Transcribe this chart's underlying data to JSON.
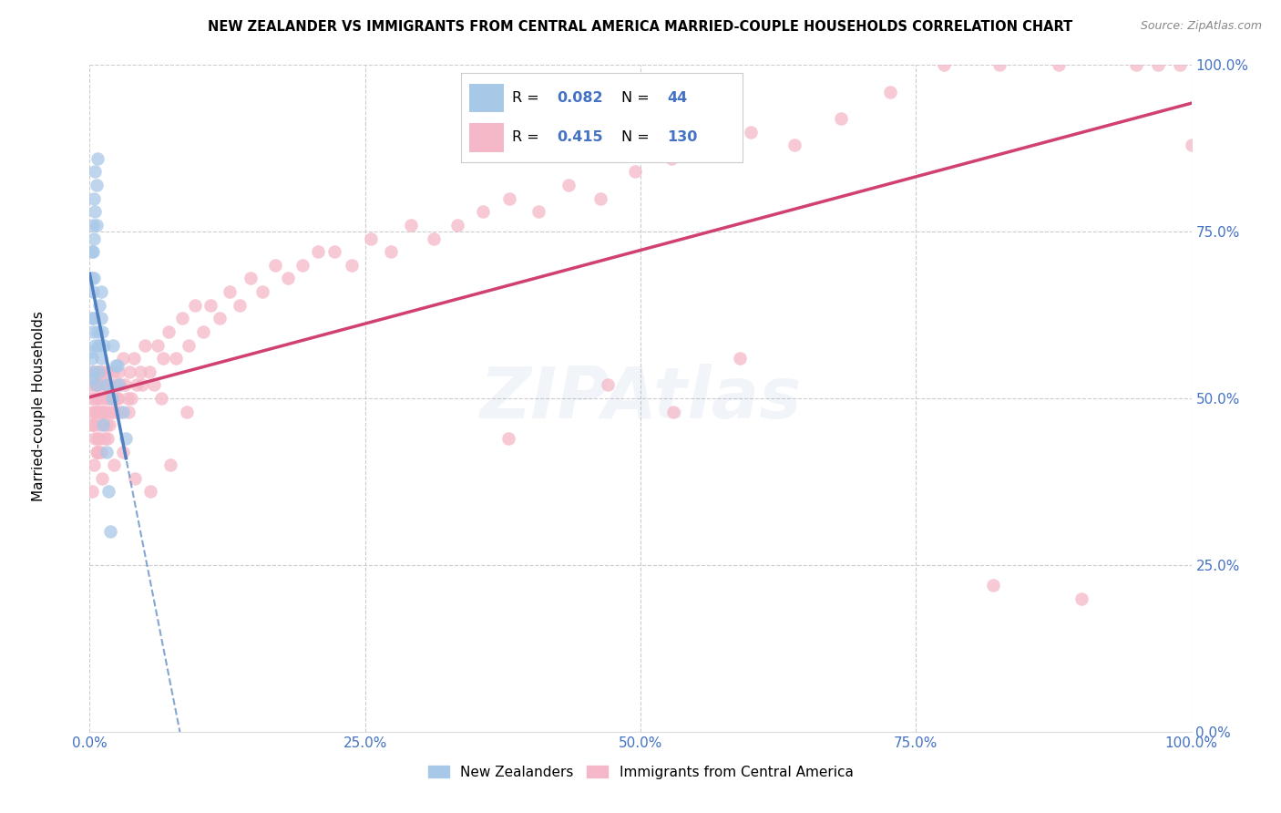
{
  "title": "NEW ZEALANDER VS IMMIGRANTS FROM CENTRAL AMERICA MARRIED-COUPLE HOUSEHOLDS CORRELATION CHART",
  "source": "Source: ZipAtlas.com",
  "ylabel": "Married-couple Households",
  "watermark": "ZIPAtlas",
  "r_nz": 0.082,
  "n_nz": 44,
  "r_ca": 0.415,
  "n_ca": 130,
  "color_nz": "#a8c8e8",
  "color_ca": "#f5b8c8",
  "line_color_nz": "#5080c0",
  "line_color_ca": "#d04070",
  "background": "#ffffff",
  "grid_color": "#cccccc",
  "text_color_blue": "#4472c4",
  "xmin": 0.0,
  "xmax": 1.0,
  "ymin": 0.0,
  "ymax": 1.0,
  "nz_x": [
    0.001,
    0.001,
    0.002,
    0.002,
    0.002,
    0.002,
    0.003,
    0.003,
    0.003,
    0.003,
    0.003,
    0.004,
    0.004,
    0.004,
    0.004,
    0.005,
    0.005,
    0.005,
    0.006,
    0.006,
    0.006,
    0.007,
    0.007,
    0.008,
    0.008,
    0.009,
    0.009,
    0.01,
    0.01,
    0.011,
    0.012,
    0.013,
    0.015,
    0.017,
    0.019,
    0.021,
    0.024,
    0.026,
    0.03,
    0.033,
    0.01,
    0.015,
    0.02,
    0.025
  ],
  "nz_y": [
    0.57,
    0.53,
    0.72,
    0.68,
    0.62,
    0.56,
    0.76,
    0.72,
    0.66,
    0.6,
    0.54,
    0.8,
    0.74,
    0.68,
    0.62,
    0.84,
    0.78,
    0.58,
    0.82,
    0.76,
    0.52,
    0.86,
    0.6,
    0.58,
    0.54,
    0.64,
    0.58,
    0.66,
    0.62,
    0.6,
    0.46,
    0.58,
    0.42,
    0.36,
    0.3,
    0.58,
    0.55,
    0.52,
    0.48,
    0.44,
    0.56,
    0.52,
    0.5,
    0.55
  ],
  "ca_x": [
    0.001,
    0.002,
    0.002,
    0.003,
    0.003,
    0.004,
    0.004,
    0.005,
    0.005,
    0.005,
    0.006,
    0.006,
    0.006,
    0.007,
    0.007,
    0.007,
    0.008,
    0.008,
    0.008,
    0.009,
    0.009,
    0.009,
    0.01,
    0.01,
    0.01,
    0.011,
    0.011,
    0.012,
    0.012,
    0.013,
    0.013,
    0.014,
    0.014,
    0.015,
    0.015,
    0.016,
    0.017,
    0.017,
    0.018,
    0.019,
    0.02,
    0.021,
    0.022,
    0.023,
    0.024,
    0.025,
    0.026,
    0.027,
    0.028,
    0.03,
    0.032,
    0.034,
    0.036,
    0.038,
    0.04,
    0.043,
    0.046,
    0.05,
    0.054,
    0.058,
    0.062,
    0.067,
    0.072,
    0.078,
    0.084,
    0.09,
    0.096,
    0.103,
    0.11,
    0.118,
    0.127,
    0.136,
    0.146,
    0.157,
    0.168,
    0.18,
    0.193,
    0.207,
    0.222,
    0.238,
    0.255,
    0.273,
    0.292,
    0.312,
    0.334,
    0.357,
    0.381,
    0.407,
    0.435,
    0.464,
    0.495,
    0.528,
    0.563,
    0.6,
    0.64,
    0.682,
    0.727,
    0.775,
    0.826,
    0.88,
    0.003,
    0.005,
    0.008,
    0.012,
    0.018,
    0.025,
    0.035,
    0.048,
    0.065,
    0.088,
    0.47,
    0.53,
    0.59,
    0.38,
    0.82,
    0.9,
    0.95,
    0.97,
    0.99,
    1.0,
    0.002,
    0.004,
    0.007,
    0.011,
    0.016,
    0.022,
    0.03,
    0.041,
    0.055,
    0.073
  ],
  "ca_y": [
    0.52,
    0.5,
    0.46,
    0.54,
    0.48,
    0.52,
    0.46,
    0.54,
    0.5,
    0.44,
    0.52,
    0.48,
    0.42,
    0.54,
    0.5,
    0.44,
    0.52,
    0.48,
    0.42,
    0.54,
    0.5,
    0.44,
    0.52,
    0.48,
    0.42,
    0.54,
    0.48,
    0.52,
    0.46,
    0.54,
    0.5,
    0.48,
    0.44,
    0.52,
    0.46,
    0.5,
    0.54,
    0.48,
    0.52,
    0.5,
    0.48,
    0.54,
    0.5,
    0.48,
    0.52,
    0.5,
    0.54,
    0.48,
    0.52,
    0.56,
    0.52,
    0.5,
    0.54,
    0.5,
    0.56,
    0.52,
    0.54,
    0.58,
    0.54,
    0.52,
    0.58,
    0.56,
    0.6,
    0.56,
    0.62,
    0.58,
    0.64,
    0.6,
    0.64,
    0.62,
    0.66,
    0.64,
    0.68,
    0.66,
    0.7,
    0.68,
    0.7,
    0.72,
    0.72,
    0.7,
    0.74,
    0.72,
    0.76,
    0.74,
    0.76,
    0.78,
    0.8,
    0.78,
    0.82,
    0.8,
    0.84,
    0.86,
    0.88,
    0.9,
    0.88,
    0.92,
    0.96,
    1.0,
    1.0,
    1.0,
    0.46,
    0.48,
    0.46,
    0.48,
    0.46,
    0.5,
    0.48,
    0.52,
    0.5,
    0.48,
    0.52,
    0.48,
    0.56,
    0.44,
    0.22,
    0.2,
    1.0,
    1.0,
    1.0,
    0.88,
    0.36,
    0.4,
    0.42,
    0.38,
    0.44,
    0.4,
    0.42,
    0.38,
    0.36,
    0.4
  ]
}
